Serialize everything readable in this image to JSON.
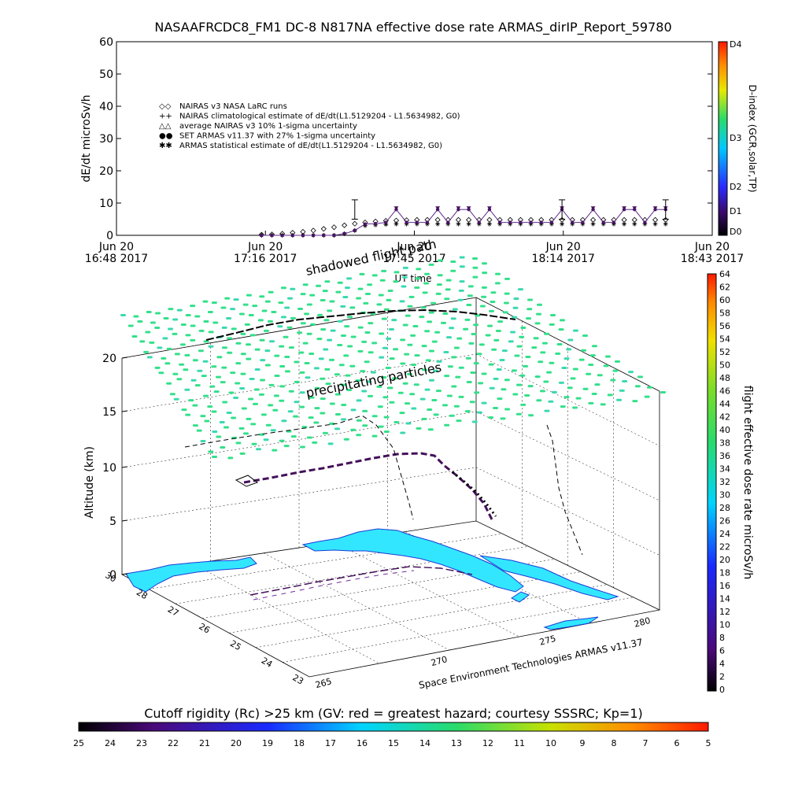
{
  "title": "NASAAFRCDC8_FM1 DC-8   N817NA effective dose rate ARMAS_dirIP_Report_59780",
  "top_panel": {
    "ylabel": "dE/dt microSv/h",
    "yticks": [
      "0",
      "10",
      "20",
      "30",
      "40",
      "50",
      "60"
    ],
    "xlabel": "UT time",
    "xticks": [
      {
        "line1": "Jun 20",
        "line2": "16:48 2017"
      },
      {
        "line1": "Jun 20",
        "line2": "17:16 2017"
      },
      {
        "line1": "Jun 20",
        "line2": "17:45 2017"
      },
      {
        "line1": "Jun 20",
        "line2": "18:14 2017"
      },
      {
        "line1": "Jun 20",
        "line2": "18:43 2017"
      }
    ],
    "legend": [
      {
        "symbol": "◇◇",
        "text": "NAIRAS v3 NASA LaRC runs"
      },
      {
        "symbol": "++",
        "text": "NAIRAS climatological estimate of dE/dt(L1.5129204 - L1.5634982, G0)"
      },
      {
        "symbol": "△△",
        "text": "average NAIRAS v3 10% 1-sigma uncertainty"
      },
      {
        "symbol": "●●",
        "text": "SET ARMAS v11.37 with 27% 1-sigma uncertainty"
      },
      {
        "symbol": "✱✱",
        "text": "ARMAS statistical estimate of dE/dt(L1.5129204 - L1.5634982, G0)"
      }
    ],
    "dindex_label": "D-index (GCR,solar,TP)",
    "dindex_ticks": [
      "D0",
      "D1",
      "D2",
      "D3",
      "D4"
    ]
  },
  "chart_data": {
    "type": "scatter",
    "title": "NASAAFRCDC8_FM1 DC-8   N817NA effective dose rate ARMAS_dirIP_Report_59780",
    "xlabel": "UT time",
    "ylabel": "dE/dt microSv/h",
    "ylim": [
      0,
      60
    ],
    "xlim_minutes_after_1648": [
      0,
      115
    ],
    "x_minutes_after_1648": [
      28,
      30,
      32,
      34,
      36,
      38,
      40,
      42,
      44,
      46,
      48,
      50,
      52,
      54,
      56,
      58,
      60,
      62,
      64,
      66,
      68,
      70,
      72,
      74,
      76,
      78,
      80,
      82,
      84,
      86,
      88,
      90,
      92,
      94,
      96,
      98,
      100,
      102,
      104,
      106
    ],
    "series": [
      {
        "name": "NAIRAS v3 NASA LaRC runs",
        "values": [
          0.2,
          0.3,
          0.5,
          0.8,
          1.1,
          1.5,
          2.0,
          2.5,
          3.1,
          3.6,
          4.0,
          4.3,
          4.5,
          4.6,
          4.7,
          4.8,
          4.8,
          4.8,
          4.8,
          4.8,
          4.8,
          4.8,
          4.8,
          4.8,
          4.8,
          4.8,
          4.8,
          4.8,
          4.8,
          4.8,
          4.8,
          4.8,
          4.8,
          4.8,
          4.8,
          4.8,
          4.8,
          4.8,
          4.8,
          4.8
        ]
      },
      {
        "name": "SET ARMAS v11.37 with 27% 1-sigma uncertainty",
        "values": [
          0.0,
          0.0,
          0.0,
          0.0,
          0.0,
          0.0,
          0.0,
          0.0,
          0.5,
          1.5,
          3.5,
          3.6,
          4.0,
          8.0,
          4.0,
          4.0,
          4.0,
          8.0,
          4.0,
          8.0,
          8.0,
          4.0,
          8.0,
          4.0,
          4.0,
          4.0,
          4.0,
          4.0,
          4.0,
          8.0,
          4.0,
          4.0,
          8.0,
          4.0,
          4.0,
          8.0,
          8.0,
          4.0,
          8.0,
          8.0
        ]
      },
      {
        "name": "ARMAS statistical estimate of dE/dt(L1.5129204 - L1.5634982, G0)",
        "values": [
          0.0,
          0.0,
          0.0,
          0.0,
          0.0,
          0.0,
          0.0,
          0.0,
          0.5,
          1.5,
          3.0,
          3.2,
          3.4,
          3.5,
          3.5,
          3.5,
          3.5,
          3.5,
          3.5,
          3.5,
          3.5,
          3.5,
          3.5,
          3.5,
          3.5,
          3.5,
          3.5,
          3.5,
          3.5,
          3.5,
          3.5,
          3.5,
          3.5,
          3.5,
          3.5,
          3.5,
          3.5,
          3.5,
          3.5,
          3.5
        ]
      }
    ]
  },
  "panel3d": {
    "shadowed": "shadowed flight path",
    "precip": "precipitating particles",
    "zlabel": "Altitude (km)",
    "zticks": [
      "0",
      "5",
      "10",
      "15",
      "20"
    ],
    "lat_ticks": [
      "30",
      "28",
      "27",
      "26",
      "25",
      "24",
      "23"
    ],
    "lon_ticks": [
      "265",
      "270",
      "275",
      "280"
    ],
    "credit": "Space Environment Technologies ARMAS v11.37",
    "dose_label": "flight effective dose rate microSv/h",
    "dose_ticks": [
      "0",
      "2",
      "4",
      "6",
      "8",
      "10",
      "12",
      "14",
      "16",
      "18",
      "20",
      "22",
      "24",
      "26",
      "28",
      "30",
      "32",
      "34",
      "36",
      "38",
      "40",
      "42",
      "44",
      "46",
      "48",
      "50",
      "52",
      "54",
      "56",
      "58",
      "60",
      "62",
      "64"
    ]
  },
  "bottom": {
    "caption": "Cutoff rigidity (Rc) >25 km (GV: red = greatest hazard; courtesy SSSRC; Kp=1)",
    "ticks": [
      "25",
      "24",
      "23",
      "22",
      "21",
      "20",
      "19",
      "18",
      "17",
      "16",
      "15",
      "14",
      "13",
      "12",
      "11",
      "10",
      "9",
      "8",
      "7",
      "6",
      "5"
    ]
  },
  "colors": {
    "land": "#33e6ff",
    "coast": "#1a3cd6",
    "precip": "#33e08a",
    "track": "#44105a"
  }
}
